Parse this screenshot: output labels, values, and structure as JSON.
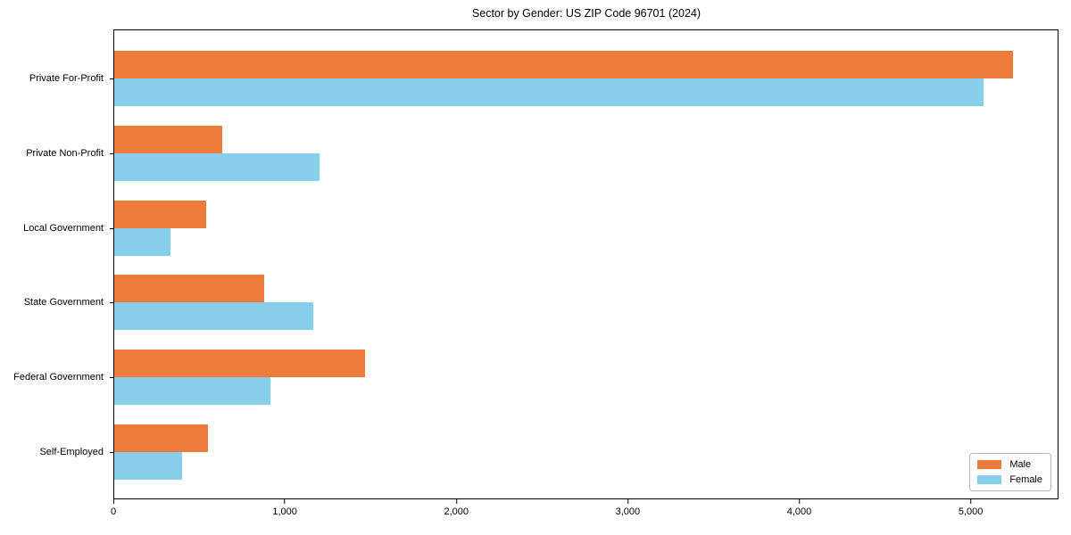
{
  "chart_data": {
    "type": "bar",
    "orientation": "horizontal",
    "title": "Sector by Gender: US ZIP Code 96701 (2024)",
    "categories": [
      "Private For-Profit",
      "Private Non-Profit",
      "Local Government",
      "State Government",
      "Federal Government",
      "Self-Employed"
    ],
    "series": [
      {
        "name": "Male",
        "color": "#EC7B3C",
        "values": [
          5250,
          630,
          535,
          875,
          1465,
          545
        ]
      },
      {
        "name": "Female",
        "color": "#87CEEB",
        "values": [
          5080,
          1200,
          330,
          1165,
          915,
          395
        ]
      }
    ],
    "xlabel": "",
    "ylabel": "",
    "xlim": [
      0,
      5512
    ],
    "xticks": [
      {
        "value": 0,
        "label": "0"
      },
      {
        "value": 1000,
        "label": "1,000"
      },
      {
        "value": 2000,
        "label": "2,000"
      },
      {
        "value": 3000,
        "label": "3,000"
      },
      {
        "value": 4000,
        "label": "4,000"
      },
      {
        "value": 5000,
        "label": "5,000"
      }
    ],
    "grid": false,
    "legend_position": "lower right",
    "spine_color": "#000000",
    "background": "#ffffff"
  }
}
